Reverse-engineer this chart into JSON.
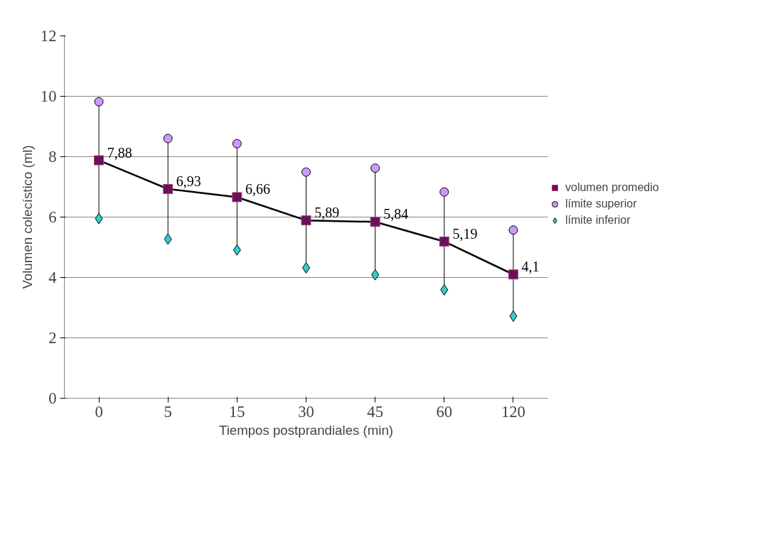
{
  "chart_data": {
    "type": "line",
    "xlabel": "Tiempos postprandiales (min)",
    "ylabel": "Volumen colecístico (ml)",
    "categories": [
      "0",
      "5",
      "15",
      "30",
      "45",
      "60",
      "120"
    ],
    "ylim": [
      0,
      12
    ],
    "yticks": [
      0,
      2,
      4,
      6,
      8,
      10,
      12
    ],
    "grid": "y",
    "legend": "right",
    "series": [
      {
        "name": "volumen promedio",
        "marker": "square",
        "color": "#6b1058",
        "values": [
          7.88,
          6.93,
          6.66,
          5.89,
          5.84,
          5.19,
          4.1
        ],
        "value_labels": [
          "7,88",
          "6,93",
          "6,66",
          "5,89",
          "5,84",
          "5,19",
          "4,1"
        ]
      },
      {
        "name": "límite superior",
        "type": "scatter",
        "marker": "circle",
        "color": "#cc99ff",
        "values": [
          9.82,
          8.6,
          8.43,
          7.49,
          7.62,
          6.83,
          5.57
        ]
      },
      {
        "name": "límite inferior",
        "type": "scatter",
        "marker": "diamond",
        "color": "#33cccc",
        "values": [
          5.95,
          5.27,
          4.91,
          4.32,
          4.09,
          3.59,
          2.72
        ]
      }
    ]
  }
}
